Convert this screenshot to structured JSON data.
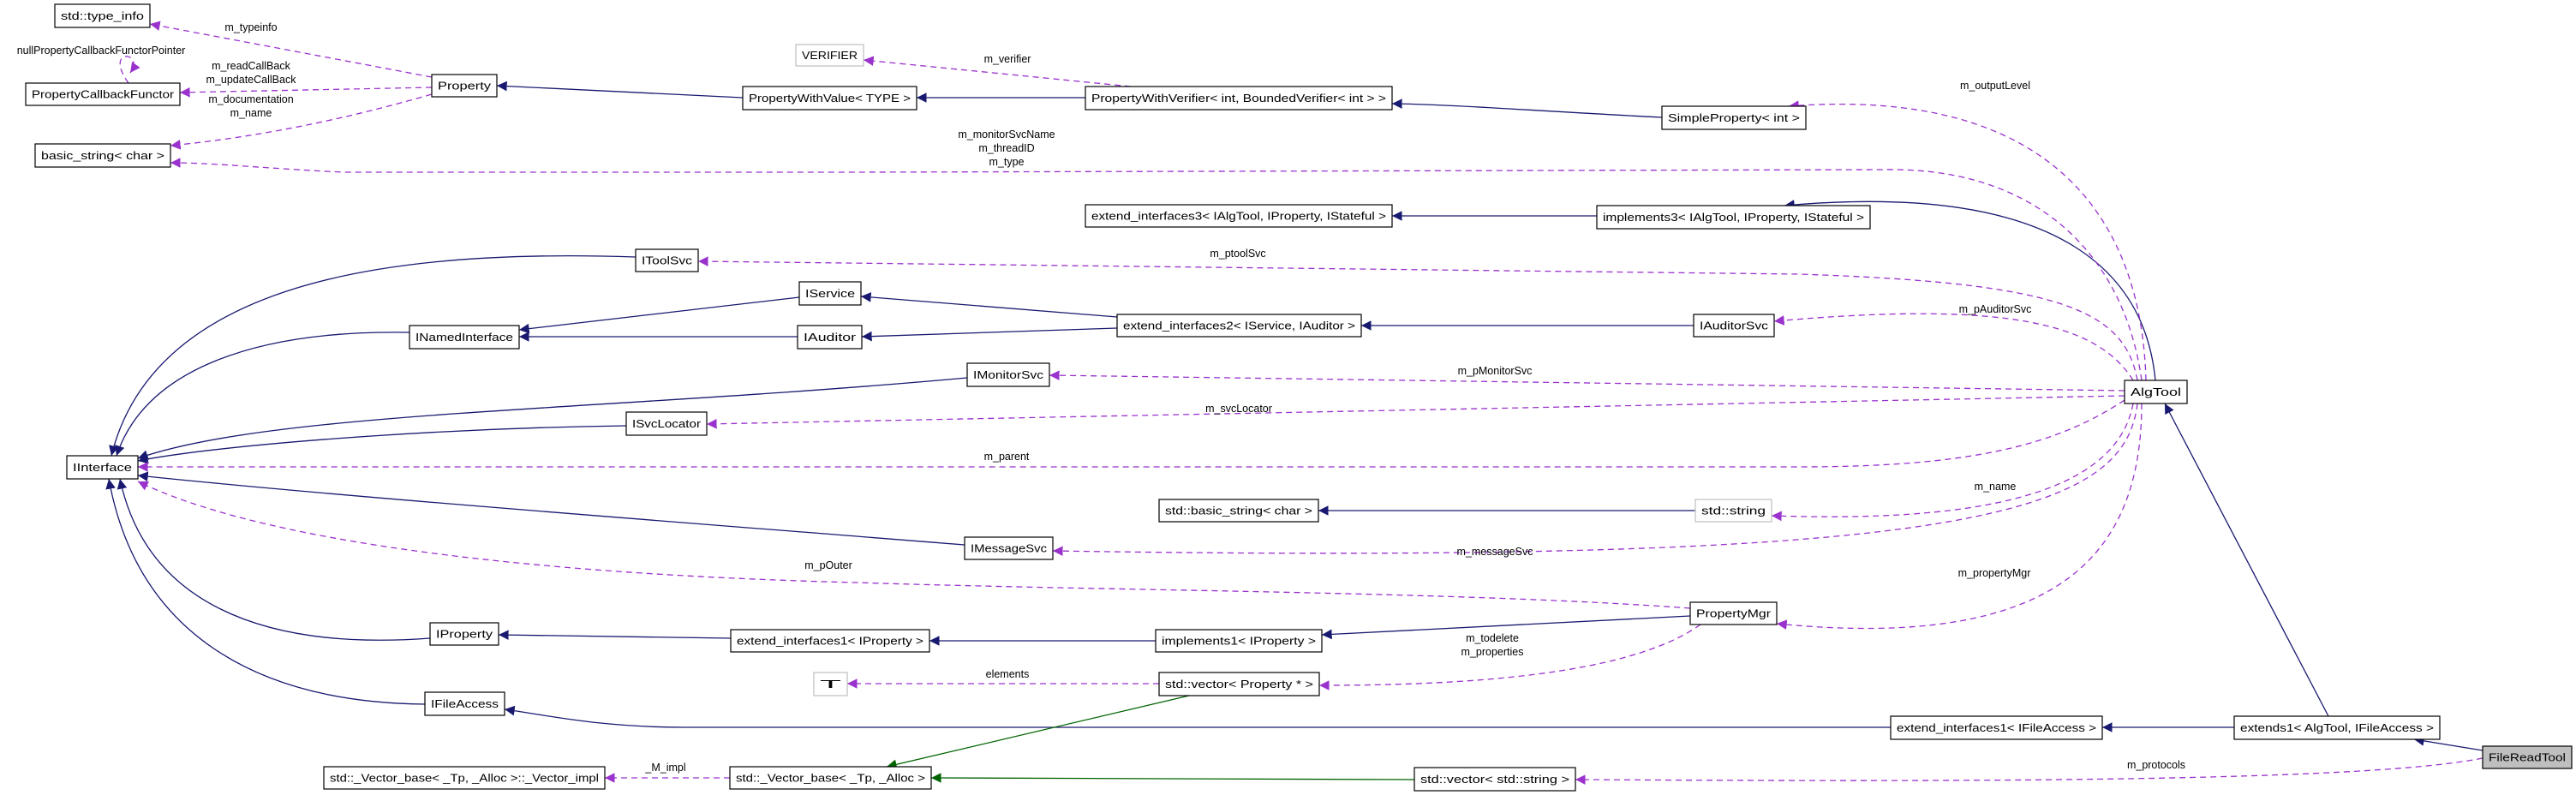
{
  "colors": {
    "inherit": "#191970",
    "usage": "#9a32cd",
    "template": "#006400",
    "main_node_fill": "#bfbfbf",
    "undocumented_border": "#bfbfbf"
  },
  "nodes": {
    "type_info": {
      "label": "std::type_info",
      "style": "normal"
    },
    "pcf": {
      "label": "PropertyCallbackFunctor",
      "style": "normal"
    },
    "basic_string": {
      "label": "basic_string< char >",
      "style": "normal"
    },
    "property": {
      "label": "Property",
      "style": "normal"
    },
    "pwv": {
      "label": "PropertyWithValue< TYPE >",
      "style": "normal"
    },
    "verifier": {
      "label": "VERIFIER",
      "style": "undocumented"
    },
    "pwverifier": {
      "label": "PropertyWithVerifier< int, BoundedVerifier< int > >",
      "style": "normal"
    },
    "simpleprop": {
      "label": "SimpleProperty< int >",
      "style": "normal"
    },
    "ext3": {
      "label": "extend_interfaces3< IAlgTool, IProperty, IStateful >",
      "style": "normal"
    },
    "impl3": {
      "label": "implements3< IAlgTool, IProperty, IStateful >",
      "style": "normal"
    },
    "itoolsvc": {
      "label": "IToolSvc",
      "style": "normal"
    },
    "iservice": {
      "label": "IService",
      "style": "normal"
    },
    "inamed": {
      "label": "INamedInterface",
      "style": "normal"
    },
    "iauditor": {
      "label": "IAuditor",
      "style": "normal"
    },
    "ext2": {
      "label": "extend_interfaces2< IService, IAuditor >",
      "style": "normal"
    },
    "iauditorsvc": {
      "label": "IAuditorSvc",
      "style": "normal"
    },
    "imonitorsvc": {
      "label": "IMonitorSvc",
      "style": "normal"
    },
    "isvclocator": {
      "label": "ISvcLocator",
      "style": "normal"
    },
    "iinterface": {
      "label": "IInterface",
      "style": "normal"
    },
    "algtool": {
      "label": "AlgTool",
      "style": "normal"
    },
    "std_basic_string": {
      "label": "std::basic_string< char >",
      "style": "normal"
    },
    "std_string": {
      "label": "std::string",
      "style": "undocumented"
    },
    "imessagesvc": {
      "label": "IMessageSvc",
      "style": "normal"
    },
    "iproperty": {
      "label": "IProperty",
      "style": "normal"
    },
    "ext1prop": {
      "label": "extend_interfaces1< IProperty >",
      "style": "normal"
    },
    "impl1": {
      "label": "implements1< IProperty >",
      "style": "normal"
    },
    "propmgr": {
      "label": "PropertyMgr",
      "style": "normal"
    },
    "t": {
      "label": "T",
      "style": "undocumented"
    },
    "vecprop": {
      "label": "std::vector< Property * >",
      "style": "normal"
    },
    "ifileaccess": {
      "label": "IFileAccess",
      "style": "normal"
    },
    "ext1fa": {
      "label": "extend_interfaces1< IFileAccess >",
      "style": "normal"
    },
    "extends1": {
      "label": "extends1< AlgTool, IFileAccess >",
      "style": "normal"
    },
    "filereadtool": {
      "label": "FileReadTool",
      "style": "main"
    },
    "vecimpl": {
      "label": "std::_Vector_base< _Tp, _Alloc >::_Vector_impl",
      "style": "normal"
    },
    "vecbase": {
      "label": "std::_Vector_base< _Tp, _Alloc >",
      "style": "normal"
    },
    "vecstring": {
      "label": "std::vector< std::string >",
      "style": "normal"
    }
  },
  "edges": [
    {
      "from": "pwv",
      "to": "property",
      "kind": "inherit",
      "labels": []
    },
    {
      "from": "pwverifier",
      "to": "pwv",
      "kind": "inherit",
      "labels": []
    },
    {
      "from": "simpleprop",
      "to": "pwverifier",
      "kind": "inherit",
      "labels": []
    },
    {
      "from": "impl3",
      "to": "ext3",
      "kind": "inherit",
      "labels": []
    },
    {
      "from": "algtool",
      "to": "impl3",
      "kind": "inherit",
      "labels": []
    },
    {
      "from": "itoolsvc",
      "to": "iinterface",
      "kind": "inherit",
      "labels": []
    },
    {
      "from": "iservice",
      "to": "inamed",
      "kind": "inherit",
      "labels": []
    },
    {
      "from": "iauditor",
      "to": "inamed",
      "kind": "inherit",
      "labels": []
    },
    {
      "from": "inamed",
      "to": "iinterface",
      "kind": "inherit",
      "labels": []
    },
    {
      "from": "ext2",
      "to": "iservice",
      "kind": "inherit",
      "labels": []
    },
    {
      "from": "ext2",
      "to": "iauditor",
      "kind": "inherit",
      "labels": []
    },
    {
      "from": "iauditorsvc",
      "to": "ext2",
      "kind": "inherit",
      "labels": []
    },
    {
      "from": "imonitorsvc",
      "to": "iinterface",
      "kind": "inherit",
      "labels": []
    },
    {
      "from": "isvclocator",
      "to": "iinterface",
      "kind": "inherit",
      "labels": []
    },
    {
      "from": "imessagesvc",
      "to": "iinterface",
      "kind": "inherit",
      "labels": []
    },
    {
      "from": "iproperty",
      "to": "iinterface",
      "kind": "inherit",
      "labels": []
    },
    {
      "from": "ifileaccess",
      "to": "iinterface",
      "kind": "inherit",
      "labels": []
    },
    {
      "from": "ext1prop",
      "to": "iproperty",
      "kind": "inherit",
      "labels": []
    },
    {
      "from": "impl1",
      "to": "ext1prop",
      "kind": "inherit",
      "labels": []
    },
    {
      "from": "propmgr",
      "to": "impl1",
      "kind": "inherit",
      "labels": []
    },
    {
      "from": "std_string",
      "to": "std_basic_string",
      "kind": "inherit",
      "labels": []
    },
    {
      "from": "ext1fa",
      "to": "ifileaccess",
      "kind": "inherit",
      "labels": []
    },
    {
      "from": "extends1",
      "to": "ext1fa",
      "kind": "inherit",
      "labels": []
    },
    {
      "from": "extends1",
      "to": "algtool",
      "kind": "inherit",
      "labels": []
    },
    {
      "from": "filereadtool",
      "to": "extends1",
      "kind": "inherit",
      "labels": []
    },
    {
      "from": "vecprop",
      "to": "vecbase",
      "kind": "template",
      "labels": []
    },
    {
      "from": "vecstring",
      "to": "vecbase",
      "kind": "template",
      "labels": []
    },
    {
      "from": "property",
      "to": "type_info",
      "kind": "usage",
      "labels": [
        "m_typeinfo"
      ]
    },
    {
      "from": "property",
      "to": "pcf",
      "kind": "usage",
      "labels": [
        "m_readCallBack",
        "m_updateCallBack"
      ]
    },
    {
      "from": "pcf",
      "to": "pcf",
      "kind": "usage",
      "labels": [
        "nullPropertyCallbackFunctorPointer"
      ]
    },
    {
      "from": "property",
      "to": "basic_string",
      "kind": "usage",
      "labels": [
        "m_documentation",
        "m_name"
      ]
    },
    {
      "from": "algtool",
      "to": "basic_string",
      "kind": "usage",
      "labels": [
        "m_monitorSvcName",
        "m_threadID",
        "m_type"
      ]
    },
    {
      "from": "pwverifier",
      "to": "verifier",
      "kind": "usage",
      "labels": [
        "m_verifier"
      ]
    },
    {
      "from": "algtool",
      "to": "simpleprop",
      "kind": "usage",
      "labels": [
        "m_outputLevel"
      ]
    },
    {
      "from": "algtool",
      "to": "itoolsvc",
      "kind": "usage",
      "labels": [
        "m_ptoolSvc"
      ]
    },
    {
      "from": "algtool",
      "to": "iauditorsvc",
      "kind": "usage",
      "labels": [
        "m_pAuditorSvc"
      ]
    },
    {
      "from": "algtool",
      "to": "imonitorsvc",
      "kind": "usage",
      "labels": [
        "m_pMonitorSvc"
      ]
    },
    {
      "from": "algtool",
      "to": "isvclocator",
      "kind": "usage",
      "labels": [
        "m_svcLocator"
      ]
    },
    {
      "from": "algtool",
      "to": "iinterface",
      "kind": "usage",
      "labels": [
        "m_parent"
      ]
    },
    {
      "from": "algtool",
      "to": "std_string",
      "kind": "usage",
      "labels": [
        "m_name"
      ]
    },
    {
      "from": "algtool",
      "to": "imessagesvc",
      "kind": "usage",
      "labels": [
        "m_messageSvc"
      ]
    },
    {
      "from": "algtool",
      "to": "propmgr",
      "kind": "usage",
      "labels": [
        "m_propertyMgr"
      ]
    },
    {
      "from": "propmgr",
      "to": "iinterface",
      "kind": "usage",
      "labels": [
        "m_pOuter"
      ]
    },
    {
      "from": "propmgr",
      "to": "vecprop",
      "kind": "usage",
      "labels": [
        "m_todelete",
        "m_properties"
      ]
    },
    {
      "from": "vecprop",
      "to": "t",
      "kind": "usage",
      "labels": [
        "elements"
      ]
    },
    {
      "from": "vecbase",
      "to": "vecimpl",
      "kind": "usage",
      "labels": [
        "_M_impl"
      ]
    },
    {
      "from": "filereadtool",
      "to": "vecstring",
      "kind": "usage",
      "labels": [
        "m_protocols"
      ]
    }
  ]
}
